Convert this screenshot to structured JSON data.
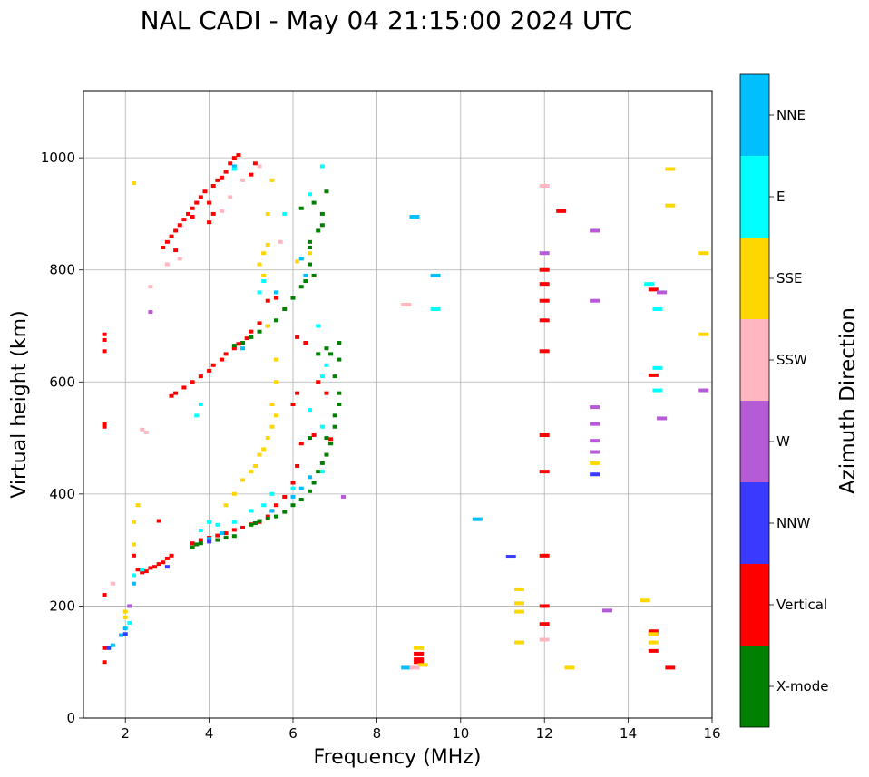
{
  "chart_data": {
    "type": "scatter",
    "title": "NAL CADI - May 04 21:15:00 2024 UTC",
    "xlabel": "Frequency (MHz)",
    "ylabel": "Virtual height (km)",
    "xlim": [
      1,
      16
    ],
    "ylim": [
      0,
      1120
    ],
    "xticks": [
      2,
      4,
      6,
      8,
      10,
      12,
      14,
      16
    ],
    "yticks": [
      0,
      200,
      400,
      600,
      800,
      1000
    ],
    "grid": true,
    "colorbar": {
      "title": "Azimuth Direction",
      "categories": [
        {
          "name": "X-mode",
          "color": "#008000"
        },
        {
          "name": "Vertical",
          "color": "#ff0000"
        },
        {
          "name": "NNW",
          "color": "#3a3aff"
        },
        {
          "name": "W",
          "color": "#b55bd6"
        },
        {
          "name": "SSW",
          "color": "#ffb6c1"
        },
        {
          "name": "SSE",
          "color": "#ffd700"
        },
        {
          "name": "E",
          "color": "#00ffff"
        },
        {
          "name": "NNE",
          "color": "#00bfff"
        }
      ]
    },
    "series": [
      {
        "name": "Vertical",
        "points": [
          [
            1.5,
            100
          ],
          [
            1.5,
            125
          ],
          [
            1.5,
            220
          ],
          [
            1.5,
            520
          ],
          [
            1.5,
            525
          ],
          [
            1.5,
            655
          ],
          [
            1.5,
            675
          ],
          [
            1.5,
            685
          ],
          [
            2.2,
            290
          ],
          [
            2.3,
            265
          ],
          [
            2.4,
            260
          ],
          [
            2.5,
            262
          ],
          [
            2.6,
            268
          ],
          [
            2.7,
            270
          ],
          [
            2.8,
            275
          ],
          [
            2.9,
            278
          ],
          [
            3.0,
            285
          ],
          [
            3.1,
            290
          ],
          [
            2.8,
            352
          ],
          [
            3.6,
            312
          ],
          [
            3.8,
            318
          ],
          [
            4.0,
            322
          ],
          [
            4.2,
            326
          ],
          [
            4.4,
            330
          ],
          [
            4.6,
            336
          ],
          [
            4.8,
            340
          ],
          [
            5.0,
            346
          ],
          [
            5.2,
            350
          ],
          [
            5.4,
            360
          ],
          [
            5.5,
            370
          ],
          [
            5.6,
            380
          ],
          [
            5.8,
            395
          ],
          [
            6.0,
            420
          ],
          [
            6.1,
            450
          ],
          [
            6.2,
            490
          ],
          [
            6.0,
            560
          ],
          [
            6.1,
            580
          ],
          [
            3.1,
            575
          ],
          [
            3.2,
            580
          ],
          [
            3.4,
            590
          ],
          [
            3.6,
            600
          ],
          [
            3.8,
            610
          ],
          [
            4.0,
            620
          ],
          [
            4.1,
            630
          ],
          [
            4.3,
            640
          ],
          [
            4.4,
            650
          ],
          [
            4.6,
            660
          ],
          [
            4.7,
            668
          ],
          [
            4.9,
            678
          ],
          [
            5.0,
            690
          ],
          [
            5.2,
            705
          ],
          [
            5.4,
            745
          ],
          [
            5.6,
            750
          ],
          [
            6.1,
            680
          ],
          [
            6.3,
            670
          ],
          [
            6.6,
            600
          ],
          [
            6.8,
            580
          ],
          [
            2.9,
            840
          ],
          [
            3.0,
            850
          ],
          [
            3.1,
            860
          ],
          [
            3.2,
            870
          ],
          [
            3.3,
            880
          ],
          [
            3.4,
            890
          ],
          [
            3.5,
            900
          ],
          [
            3.6,
            910
          ],
          [
            3.7,
            920
          ],
          [
            3.8,
            930
          ],
          [
            3.9,
            940
          ],
          [
            4.0,
            920
          ],
          [
            4.1,
            950
          ],
          [
            4.2,
            960
          ],
          [
            4.3,
            965
          ],
          [
            4.4,
            975
          ],
          [
            4.5,
            990
          ],
          [
            4.6,
            1000
          ],
          [
            4.7,
            1005
          ],
          [
            4.0,
            885
          ],
          [
            4.1,
            900
          ],
          [
            3.2,
            835
          ],
          [
            5.1,
            990
          ],
          [
            5.0,
            970
          ],
          [
            3.6,
            895
          ],
          [
            6.5,
            505
          ],
          [
            6.9,
            498
          ],
          [
            12.0,
            800
          ],
          [
            12.0,
            775
          ],
          [
            12.0,
            745
          ],
          [
            12.0,
            710
          ],
          [
            12.0,
            655
          ],
          [
            12.0,
            505
          ],
          [
            12.0,
            440
          ],
          [
            12.0,
            290
          ],
          [
            12.0,
            200
          ],
          [
            12.0,
            168
          ],
          [
            12.4,
            905
          ],
          [
            14.6,
            765
          ],
          [
            14.6,
            612
          ],
          [
            14.6,
            155
          ],
          [
            14.6,
            150
          ],
          [
            14.6,
            120
          ],
          [
            15.0,
            90
          ],
          [
            9.0,
            105
          ],
          [
            9.0,
            115
          ],
          [
            9.0,
            100
          ]
        ]
      },
      {
        "name": "X-mode",
        "points": [
          [
            3.6,
            305
          ],
          [
            3.7,
            310
          ],
          [
            3.8,
            312
          ],
          [
            4.2,
            318
          ],
          [
            4.4,
            322
          ],
          [
            4.6,
            325
          ],
          [
            5.0,
            345
          ],
          [
            5.1,
            348
          ],
          [
            5.2,
            352
          ],
          [
            5.4,
            356
          ],
          [
            5.6,
            360
          ],
          [
            5.8,
            368
          ],
          [
            6.0,
            380
          ],
          [
            6.2,
            390
          ],
          [
            6.4,
            405
          ],
          [
            6.5,
            420
          ],
          [
            6.6,
            440
          ],
          [
            6.7,
            455
          ],
          [
            6.8,
            470
          ],
          [
            6.9,
            490
          ],
          [
            7.0,
            520
          ],
          [
            7.0,
            540
          ],
          [
            7.1,
            560
          ],
          [
            7.1,
            580
          ],
          [
            7.0,
            610
          ],
          [
            7.1,
            640
          ],
          [
            7.1,
            670
          ],
          [
            6.8,
            660
          ],
          [
            6.6,
            650
          ],
          [
            6.4,
            500
          ],
          [
            6.8,
            500
          ],
          [
            5.2,
            690
          ],
          [
            5.4,
            700
          ],
          [
            5.6,
            710
          ],
          [
            5.8,
            730
          ],
          [
            6.0,
            750
          ],
          [
            6.2,
            770
          ],
          [
            6.3,
            780
          ],
          [
            6.5,
            790
          ],
          [
            6.4,
            810
          ],
          [
            6.4,
            840
          ],
          [
            6.4,
            850
          ],
          [
            6.6,
            870
          ],
          [
            6.7,
            880
          ],
          [
            6.7,
            900
          ],
          [
            6.8,
            940
          ],
          [
            6.5,
            920
          ],
          [
            6.2,
            910
          ],
          [
            5.0,
            680
          ],
          [
            4.8,
            670
          ],
          [
            4.6,
            665
          ],
          [
            6.9,
            650
          ]
        ]
      },
      {
        "name": "NNE",
        "points": [
          [
            1.6,
            125
          ],
          [
            1.7,
            130
          ],
          [
            1.9,
            148
          ],
          [
            2.0,
            160
          ],
          [
            2.1,
            200
          ],
          [
            2.2,
            240
          ],
          [
            4.0,
            320
          ],
          [
            4.3,
            330
          ],
          [
            5.5,
            370
          ],
          [
            6.0,
            395
          ],
          [
            6.2,
            410
          ],
          [
            6.4,
            430
          ],
          [
            4.8,
            660
          ],
          [
            5.6,
            760
          ],
          [
            6.2,
            820
          ],
          [
            6.3,
            790
          ],
          [
            4.6,
            985
          ],
          [
            8.7,
            90
          ],
          [
            10.4,
            355
          ],
          [
            9.4,
            790
          ],
          [
            8.9,
            895
          ]
        ]
      },
      {
        "name": "E",
        "points": [
          [
            2.0,
            150
          ],
          [
            2.1,
            170
          ],
          [
            2.2,
            255
          ],
          [
            2.4,
            265
          ],
          [
            4.6,
            350
          ],
          [
            5.0,
            370
          ],
          [
            5.3,
            380
          ],
          [
            5.5,
            400
          ],
          [
            6.0,
            410
          ],
          [
            6.7,
            440
          ],
          [
            6.7,
            610
          ],
          [
            6.8,
            630
          ],
          [
            6.7,
            520
          ],
          [
            6.4,
            550
          ],
          [
            6.6,
            700
          ],
          [
            6.4,
            935
          ],
          [
            6.7,
            985
          ],
          [
            4.0,
            350
          ],
          [
            4.2,
            345
          ],
          [
            3.8,
            335
          ],
          [
            5.3,
            780
          ],
          [
            5.2,
            760
          ],
          [
            4.6,
            980
          ],
          [
            3.7,
            540
          ],
          [
            3.8,
            560
          ],
          [
            9.4,
            730
          ],
          [
            14.5,
            775
          ],
          [
            14.7,
            730
          ],
          [
            14.7,
            625
          ],
          [
            14.7,
            585
          ],
          [
            5.8,
            900
          ]
        ]
      },
      {
        "name": "SSE",
        "points": [
          [
            2.0,
            180
          ],
          [
            2.0,
            190
          ],
          [
            2.3,
            380
          ],
          [
            2.2,
            350
          ],
          [
            2.2,
            310
          ],
          [
            2.2,
            955
          ],
          [
            5.0,
            440
          ],
          [
            5.1,
            450
          ],
          [
            5.2,
            470
          ],
          [
            5.3,
            480
          ],
          [
            5.4,
            500
          ],
          [
            5.5,
            520
          ],
          [
            5.6,
            540
          ],
          [
            5.5,
            560
          ],
          [
            5.6,
            600
          ],
          [
            5.6,
            640
          ],
          [
            5.4,
            700
          ],
          [
            5.3,
            790
          ],
          [
            5.2,
            810
          ],
          [
            5.4,
            845
          ],
          [
            5.3,
            830
          ],
          [
            5.4,
            900
          ],
          [
            5.5,
            960
          ],
          [
            4.8,
            425
          ],
          [
            4.6,
            400
          ],
          [
            4.4,
            380
          ],
          [
            6.1,
            815
          ],
          [
            6.4,
            830
          ],
          [
            11.4,
            135
          ],
          [
            11.4,
            190
          ],
          [
            11.4,
            205
          ],
          [
            11.4,
            230
          ],
          [
            12.6,
            90
          ],
          [
            13.2,
            455
          ],
          [
            14.4,
            210
          ],
          [
            14.6,
            135
          ],
          [
            14.6,
            150
          ],
          [
            15.0,
            980
          ],
          [
            15.0,
            915
          ],
          [
            15.8,
            830
          ],
          [
            15.8,
            685
          ],
          [
            9.1,
            95
          ],
          [
            9.0,
            125
          ]
        ]
      },
      {
        "name": "SSW",
        "points": [
          [
            1.7,
            240
          ],
          [
            2.4,
            515
          ],
          [
            2.5,
            510
          ],
          [
            2.6,
            770
          ],
          [
            3.0,
            810
          ],
          [
            3.3,
            820
          ],
          [
            4.3,
            905
          ],
          [
            4.5,
            930
          ],
          [
            4.8,
            960
          ],
          [
            5.2,
            985
          ],
          [
            8.7,
            738
          ],
          [
            12.0,
            950
          ],
          [
            12.0,
            140
          ],
          [
            8.9,
            90
          ],
          [
            5.7,
            850
          ]
        ]
      },
      {
        "name": "NNW",
        "points": [
          [
            2.0,
            150
          ],
          [
            3.0,
            270
          ],
          [
            4.0,
            315
          ],
          [
            11.2,
            288
          ],
          [
            13.2,
            435
          ],
          [
            1.6,
            125
          ]
        ]
      },
      {
        "name": "W",
        "points": [
          [
            2.1,
            200
          ],
          [
            2.6,
            725
          ],
          [
            7.2,
            395
          ],
          [
            12.0,
            830
          ],
          [
            13.2,
            870
          ],
          [
            13.2,
            745
          ],
          [
            13.2,
            555
          ],
          [
            13.2,
            525
          ],
          [
            13.2,
            495
          ],
          [
            13.2,
            475
          ],
          [
            13.5,
            192
          ],
          [
            14.8,
            760
          ],
          [
            14.8,
            535
          ],
          [
            15.8,
            585
          ]
        ]
      }
    ]
  }
}
